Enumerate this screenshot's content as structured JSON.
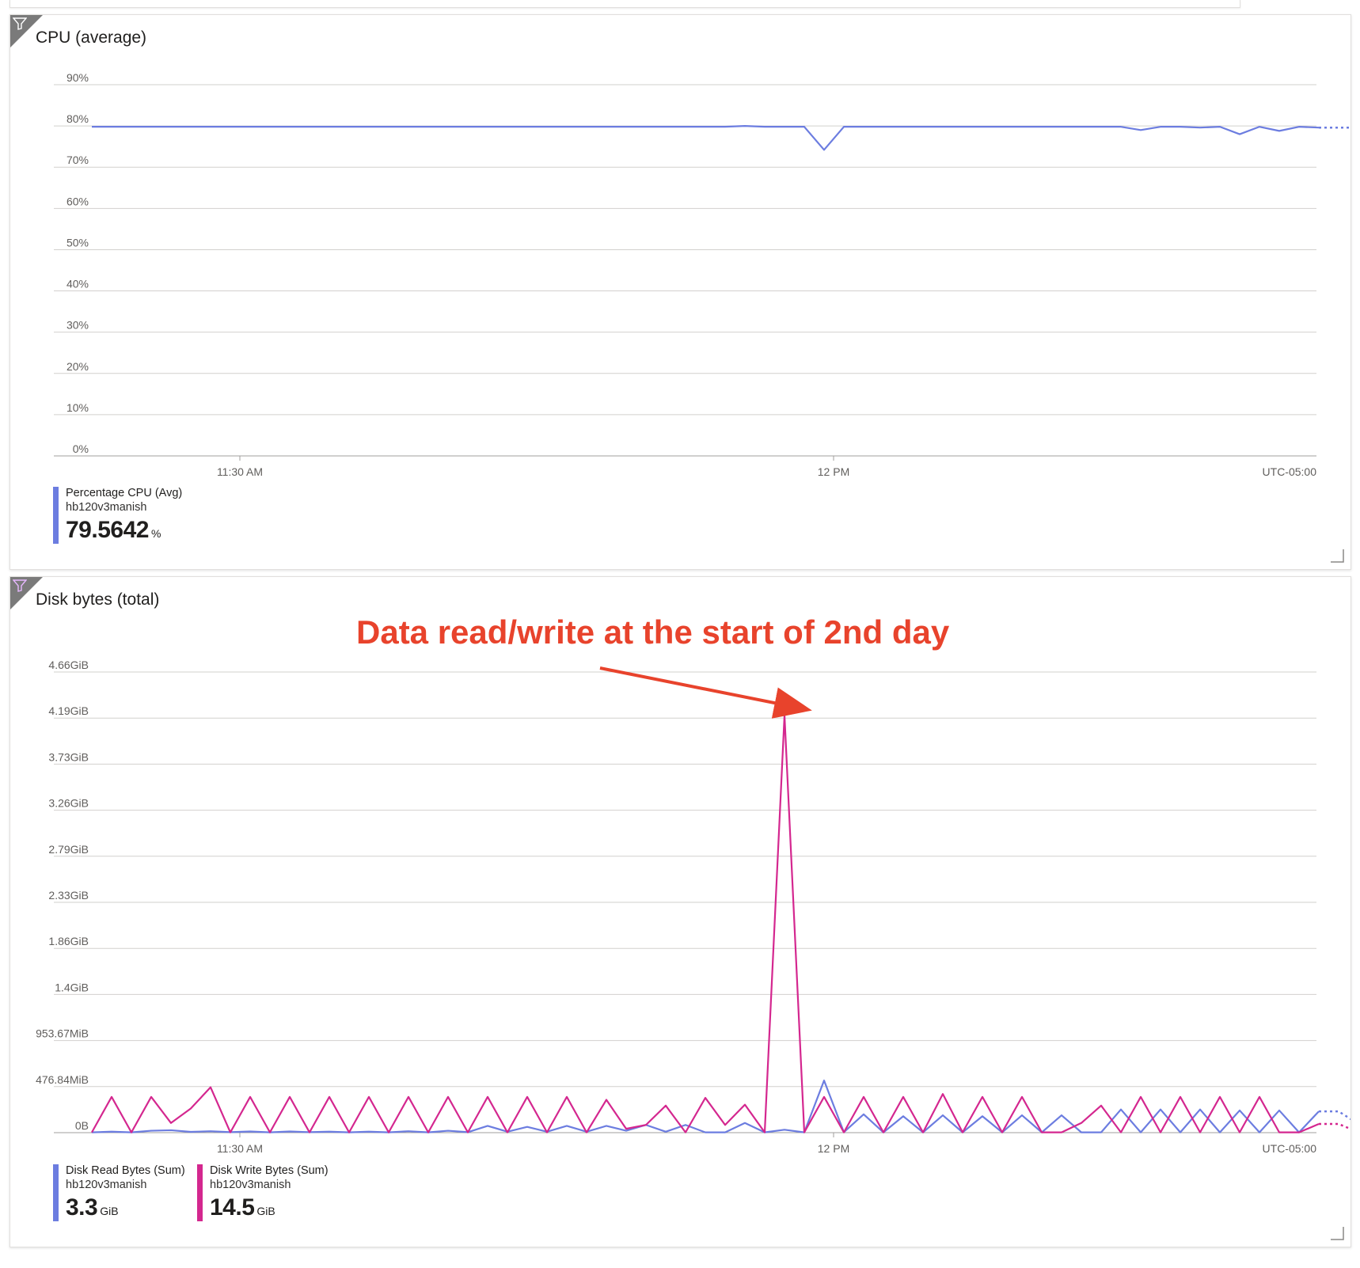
{
  "colors": {
    "read": "#6c7de0",
    "write": "#d4278f",
    "cpu": "#6c7de0",
    "annotation": "#e8432c"
  },
  "cpu_tile": {
    "title": "CPU (average)",
    "timezone": "UTC-05:00",
    "legend": {
      "name": "Percentage CPU (Avg)",
      "resource": "hb120v3manish",
      "value": "79.5642",
      "unit": "%"
    }
  },
  "disk_tile": {
    "title": "Disk bytes (total)",
    "timezone": "UTC-05:00",
    "legend": [
      {
        "name": "Disk Read Bytes (Sum)",
        "resource": "hb120v3manish",
        "value": "3.3",
        "unit": "GiB"
      },
      {
        "name": "Disk Write Bytes (Sum)",
        "resource": "hb120v3manish",
        "value": "14.5",
        "unit": "GiB"
      }
    ]
  },
  "annotation": {
    "text": "Data read/write at the start of 2nd day"
  },
  "chart_data": [
    {
      "type": "line",
      "title": "CPU (average)",
      "y_ticks": [
        "0%",
        "10%",
        "20%",
        "30%",
        "40%",
        "50%",
        "60%",
        "70%",
        "80%",
        "90%"
      ],
      "ylim": [
        0,
        90
      ],
      "x_ticks": [
        "11:30 AM",
        "12 PM"
      ],
      "grid": true,
      "series": [
        {
          "name": "Percentage CPU (Avg)",
          "values": [
            79.8,
            79.8,
            79.8,
            79.8,
            79.8,
            79.8,
            79.8,
            79.8,
            79.8,
            79.8,
            79.8,
            79.8,
            79.8,
            79.8,
            79.8,
            79.8,
            79.8,
            79.8,
            79.8,
            79.8,
            79.8,
            79.8,
            79.8,
            79.8,
            79.8,
            79.8,
            79.8,
            79.8,
            79.8,
            79.8,
            79.8,
            79.8,
            79.8,
            80.0,
            79.8,
            79.8,
            79.8,
            74.2,
            79.8,
            79.8,
            79.8,
            79.8,
            79.8,
            79.8,
            79.8,
            79.8,
            79.8,
            79.8,
            79.8,
            79.8,
            79.8,
            79.8,
            79.8,
            79.0,
            79.8,
            79.8,
            79.6,
            79.8,
            78.0,
            79.8,
            78.8,
            79.8,
            79.6
          ],
          "projected": [
            79.6,
            79.6
          ]
        }
      ]
    },
    {
      "type": "line",
      "title": "Disk bytes (total)",
      "y_ticks": [
        "0B",
        "476.84MiB",
        "953.67MiB",
        "1.4GiB",
        "1.86GiB",
        "2.33GiB",
        "2.79GiB",
        "3.26GiB",
        "3.73GiB",
        "4.19GiB",
        "4.66GiB"
      ],
      "ylim_mib": [
        0,
        4768.4
      ],
      "x_ticks": [
        "11:30 AM",
        "12 PM"
      ],
      "grid": true,
      "series": [
        {
          "name": "Disk Read Bytes (Sum)",
          "values_mib": [
            3,
            10,
            3,
            20,
            25,
            8,
            15,
            5,
            12,
            3,
            12,
            5,
            10,
            3,
            10,
            3,
            15,
            3,
            20,
            5,
            70,
            10,
            60,
            10,
            70,
            10,
            70,
            20,
            80,
            10,
            80,
            3,
            3,
            100,
            3,
            30,
            3,
            540,
            5,
            190,
            3,
            170,
            3,
            180,
            3,
            170,
            3,
            180,
            3,
            180,
            3,
            3,
            240,
            3,
            240,
            3,
            240,
            3,
            230,
            3,
            230,
            3,
            220
          ],
          "projected_mib": [
            220,
            90
          ]
        },
        {
          "name": "Disk Write Bytes (Sum)",
          "values_mib": [
            3,
            370,
            3,
            370,
            100,
            250,
            470,
            3,
            370,
            3,
            370,
            3,
            370,
            3,
            370,
            3,
            370,
            3,
            370,
            3,
            370,
            3,
            370,
            3,
            370,
            3,
            340,
            40,
            80,
            280,
            3,
            360,
            80,
            290,
            3,
            4320,
            3,
            370,
            3,
            370,
            3,
            370,
            3,
            400,
            3,
            370,
            3,
            370,
            3,
            3,
            100,
            280,
            3,
            370,
            3,
            370,
            3,
            370,
            3,
            370,
            3,
            3,
            90
          ],
          "projected_mib": [
            90,
            5
          ]
        }
      ]
    }
  ]
}
